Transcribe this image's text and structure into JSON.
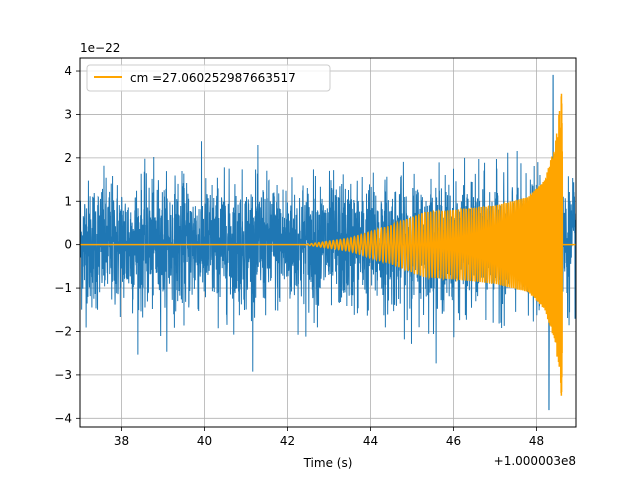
{
  "chart_data": {
    "type": "line",
    "title": "",
    "xlabel": "Time (s)",
    "ylabel": "",
    "x_offset_label": "+1.000003e8",
    "y_scale_label": "1e−22",
    "xlim": [
      37.0,
      48.95
    ],
    "ylim": [
      -4.2,
      4.3
    ],
    "x_ticks": [
      38,
      40,
      42,
      44,
      46,
      48
    ],
    "x_tick_labels": [
      "38",
      "40",
      "42",
      "44",
      "46",
      "48"
    ],
    "y_ticks": [
      -4,
      -3,
      -2,
      -1,
      0,
      1,
      2,
      3,
      4
    ],
    "y_tick_labels": [
      "−4",
      "−3",
      "−2",
      "−1",
      "0",
      "1",
      "2",
      "3",
      "4"
    ],
    "grid": true,
    "legend_position": "top-left",
    "series": [
      {
        "name": "",
        "color": "#1f77b4",
        "description_values": {
          "typical_envelope": 1.6,
          "max_peak": 3.9,
          "max_peak_x": 48.4,
          "min_peak": -3.8,
          "min_peak_x": 48.3
        }
      },
      {
        "name": "cm =27.060252987663517",
        "color": "#ffa500",
        "chirp": {
          "x_start": 42.4,
          "x_merger": 48.6,
          "x_end": 48.95,
          "envelope": [
            [
              42.4,
              0.0
            ],
            [
              43.5,
              0.15
            ],
            [
              44.5,
              0.45
            ],
            [
              45.3,
              0.75
            ],
            [
              46.0,
              0.8
            ],
            [
              47.0,
              0.9
            ],
            [
              47.8,
              1.1
            ],
            [
              48.2,
              1.5
            ],
            [
              48.45,
              2.3
            ],
            [
              48.6,
              3.5
            ]
          ],
          "post_merger_value": 0.0
        }
      }
    ]
  }
}
